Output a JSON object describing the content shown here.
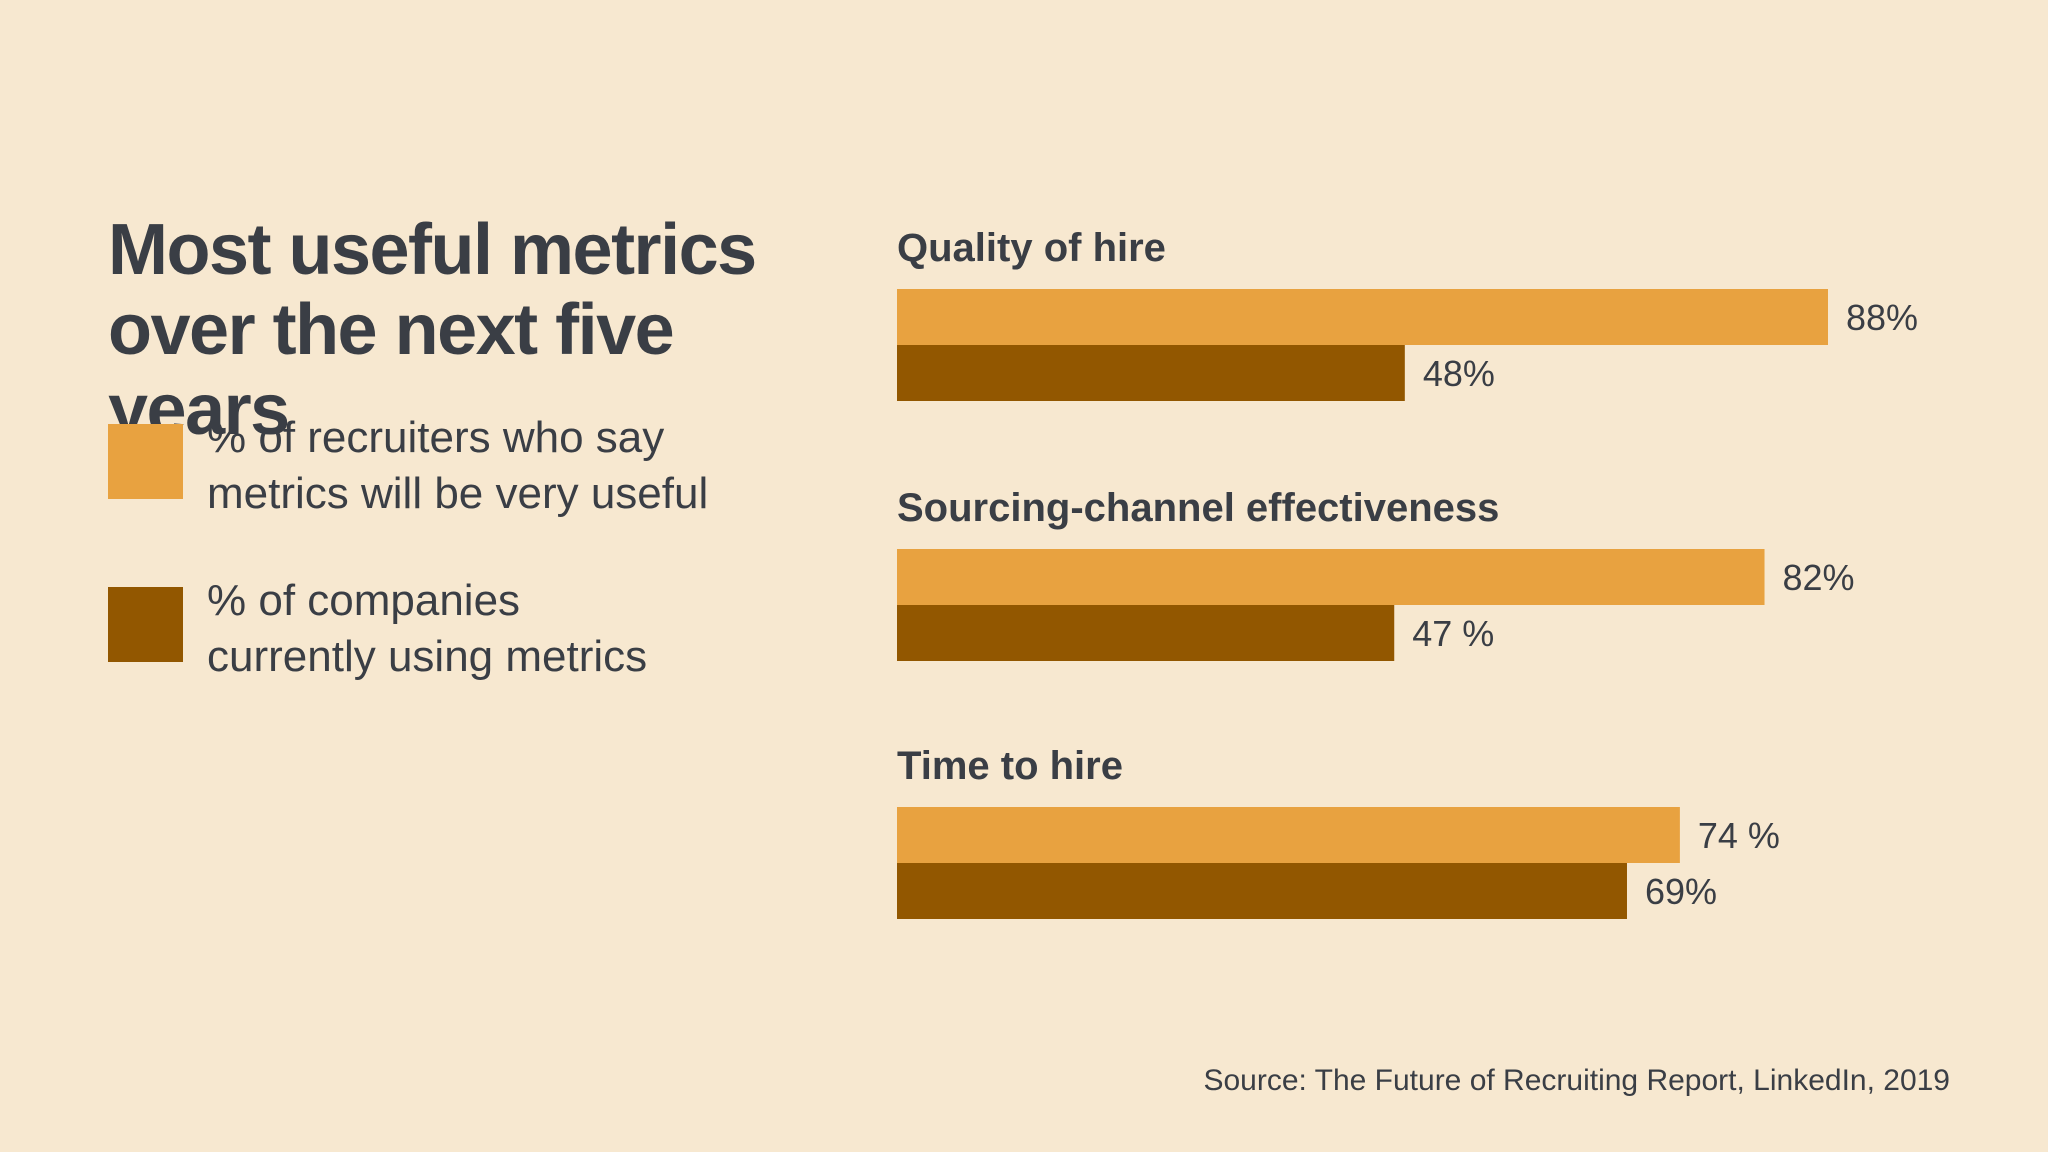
{
  "title": {
    "line1": "Most useful metrics",
    "line2": "over the next five years"
  },
  "legend": [
    {
      "line1": "% of recruiters who say",
      "line2": "metrics will be very useful",
      "color": "#e8a240"
    },
    {
      "line1": "% of companies",
      "line2": "currently using metrics",
      "color": "#925700"
    }
  ],
  "chart_data": {
    "type": "bar",
    "orientation": "horizontal",
    "title": "Most useful metrics over the next five years",
    "categories": [
      "Quality of hire",
      "Sourcing-channel effectiveness",
      "Time to hire"
    ],
    "series": [
      {
        "name": "% of recruiters who say metrics will be very useful",
        "values": [
          88,
          82,
          74
        ],
        "labels": [
          "88%",
          "82%",
          "74 %"
        ],
        "color": "#e8a240"
      },
      {
        "name": "% of companies currently using metrics",
        "values": [
          48,
          47,
          69
        ],
        "labels": [
          "48%",
          "47 %",
          "69%"
        ],
        "color": "#925700"
      }
    ],
    "xlim": [
      0,
      100
    ],
    "grid": false,
    "legend": "left"
  },
  "source": "Source: The Future of Recruiting Report, LinkedIn, 2019"
}
